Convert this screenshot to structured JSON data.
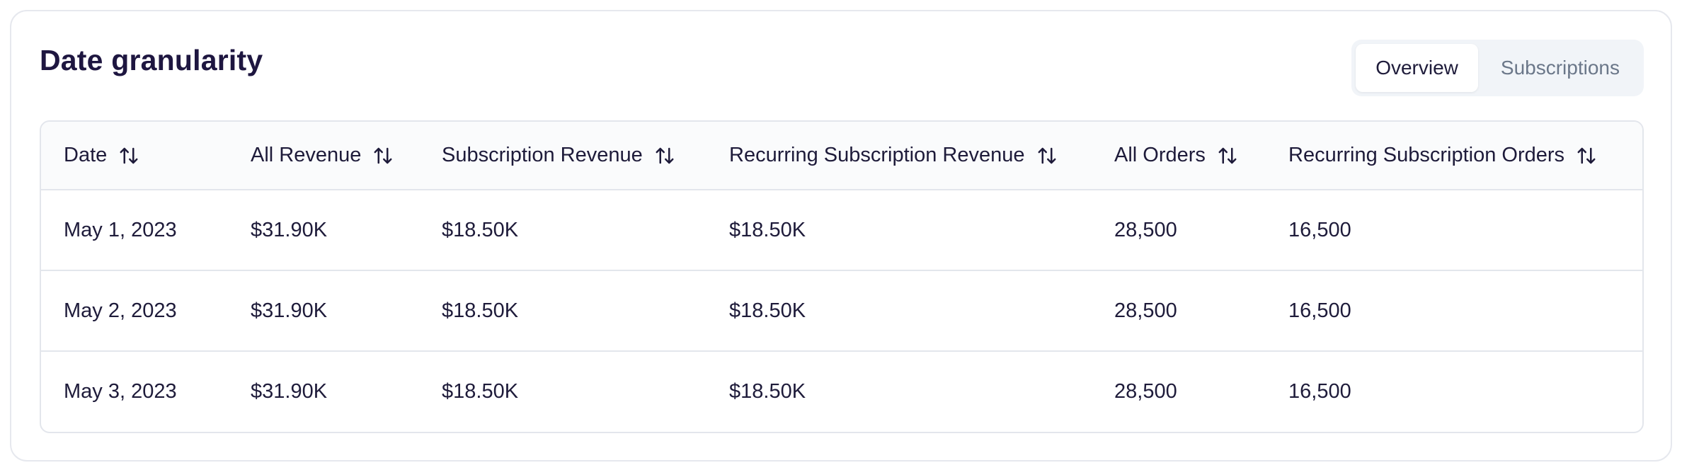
{
  "card": {
    "title": "Date granularity"
  },
  "tabs": [
    {
      "label": "Overview",
      "active": true
    },
    {
      "label": "Subscriptions",
      "active": false
    }
  ],
  "table": {
    "columns": [
      "Date",
      "All Revenue",
      "Subscription Revenue",
      "Recurring Subscription Revenue",
      "All Orders",
      "Recurring Subscription Orders"
    ],
    "rows": [
      [
        "May 1, 2023",
        "$31.90K",
        "$18.50K",
        "$18.50K",
        "28,500",
        "16,500"
      ],
      [
        "May 2, 2023",
        "$31.90K",
        "$18.50K",
        "$18.50K",
        "28,500",
        "16,500"
      ],
      [
        "May 3, 2023",
        "$31.90K",
        "$18.50K",
        "$18.50K",
        "28,500",
        "16,500"
      ]
    ],
    "sort_icon": "sort-arrows-icon"
  },
  "colors": {
    "title": "#1e1640",
    "text": "#1e1b3a",
    "muted": "#6b7789",
    "border": "#e3e6ec",
    "segment_bg": "#f1f4f8"
  }
}
